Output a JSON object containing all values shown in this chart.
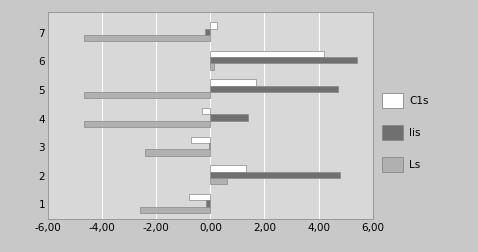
{
  "categories": [
    1,
    2,
    3,
    4,
    5,
    6,
    7
  ],
  "C1s": [
    -0.8,
    1.3,
    -0.7,
    -0.3,
    1.7,
    4.2,
    0.25
  ],
  "Iis": [
    -0.15,
    4.8,
    -0.05,
    1.4,
    4.7,
    5.4,
    -0.2
  ],
  "Ls": [
    -2.6,
    0.6,
    -2.4,
    -4.65,
    -4.65,
    0.15,
    -4.65
  ],
  "legend_labels": [
    "C1s",
    "Iis",
    "Ls"
  ],
  "bar_colors": [
    "#ffffff",
    "#707070",
    "#b0b0b0"
  ],
  "xlim": [
    -6.0,
    6.0
  ],
  "xticks": [
    -6.0,
    -4.0,
    -2.0,
    0.0,
    2.0,
    4.0,
    6.0
  ],
  "xtick_labels": [
    "-6,00",
    "-4,00",
    "-2,00",
    "0,00",
    "2,00",
    "4,00",
    "6,00"
  ],
  "yticks": [
    1,
    2,
    3,
    4,
    5,
    6,
    7
  ],
  "outer_bg": "#c8c8c8",
  "plot_bg_color": "#d8d8d8",
  "bar_height": 0.22,
  "bar_edge_color": "#888888",
  "legend_bg": "#e8e8e8"
}
